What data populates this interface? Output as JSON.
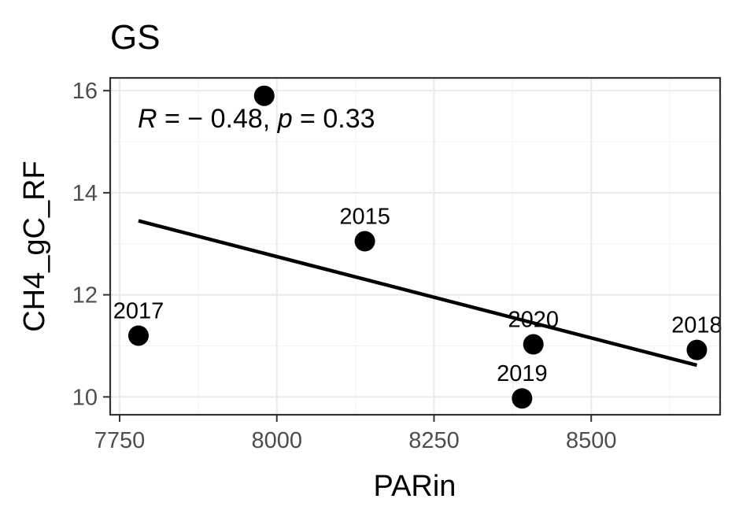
{
  "chart_data": {
    "type": "scatter",
    "title": "GS",
    "xlabel": "PARin",
    "ylabel": "CH4_gC_RF",
    "xlim": [
      7735,
      8705
    ],
    "ylim": [
      9.65,
      16.25
    ],
    "x_ticks": [
      7750,
      8000,
      8250,
      8500
    ],
    "y_ticks": [
      10,
      12,
      14,
      16
    ],
    "grid": true,
    "points": [
      {
        "x": 7780,
        "y": 11.2,
        "label": "2017"
      },
      {
        "x": 7980,
        "y": 15.9,
        "label": ""
      },
      {
        "x": 8140,
        "y": 13.05,
        "label": "2015"
      },
      {
        "x": 8390,
        "y": 9.97,
        "label": "2019"
      },
      {
        "x": 8408,
        "y": 11.03,
        "label": "2020"
      },
      {
        "x": 8668,
        "y": 10.92,
        "label": "2018"
      }
    ],
    "fit_line": {
      "x": [
        7780,
        8668
      ],
      "y": [
        13.45,
        10.62
      ]
    },
    "annotation": {
      "r_symbol": "R",
      "r_text": " = − 0.48, ",
      "p_symbol": "p",
      "p_text": " = 0.33"
    }
  }
}
